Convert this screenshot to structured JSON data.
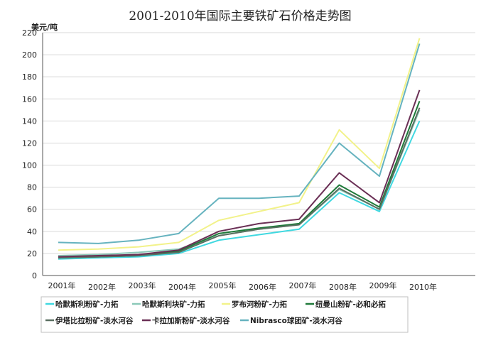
{
  "chart_data": {
    "type": "line",
    "title": "2001-2010年国际主要铁矿石价格走势图",
    "ylabel": "美元/吨",
    "xlabel": "",
    "categories": [
      "2001年",
      "2002年",
      "2003年",
      "2004年",
      "2005年",
      "2006年",
      "2007年",
      "2008年",
      "2009年",
      "2010年"
    ],
    "ylim": [
      0,
      220
    ],
    "yticks": [
      0,
      20,
      40,
      60,
      80,
      100,
      120,
      140,
      160,
      180,
      200,
      220
    ],
    "grid": true,
    "legend_position": "bottom",
    "series": [
      {
        "name": "哈默斯利粉矿-力拓",
        "color": "#40d8e0",
        "values": [
          15,
          16,
          17,
          20,
          32,
          37,
          42,
          75,
          58,
          140
        ]
      },
      {
        "name": "哈默斯利块矿-力拓",
        "color": "#8cc9b8",
        "values": [
          18,
          19,
          21,
          24,
          36,
          42,
          46,
          78,
          60,
          150
        ]
      },
      {
        "name": "罗布河粉矿-力拓",
        "color": "#f2f28a",
        "values": [
          23,
          24,
          26,
          30,
          50,
          58,
          66,
          132,
          97,
          215
        ]
      },
      {
        "name": "纽曼山粉矿-必和必拓",
        "color": "#1f7a3a",
        "values": [
          16,
          17,
          18,
          22,
          38,
          43,
          47,
          82,
          62,
          158
        ]
      },
      {
        "name": "伊塔比拉粉矿-淡水河谷",
        "color": "#5a6f60",
        "values": [
          16,
          17,
          18,
          21,
          36,
          42,
          46,
          79,
          60,
          152
        ]
      },
      {
        "name": "卡拉加斯粉矿-淡水河谷",
        "color": "#6a2f55",
        "values": [
          17,
          18,
          19,
          23,
          40,
          47,
          51,
          93,
          66,
          168
        ]
      },
      {
        "name": "Nibrasco球团矿-淡水河谷",
        "color": "#66b3bf",
        "values": [
          30,
          29,
          32,
          38,
          70,
          70,
          72,
          120,
          90,
          210
        ]
      }
    ]
  }
}
